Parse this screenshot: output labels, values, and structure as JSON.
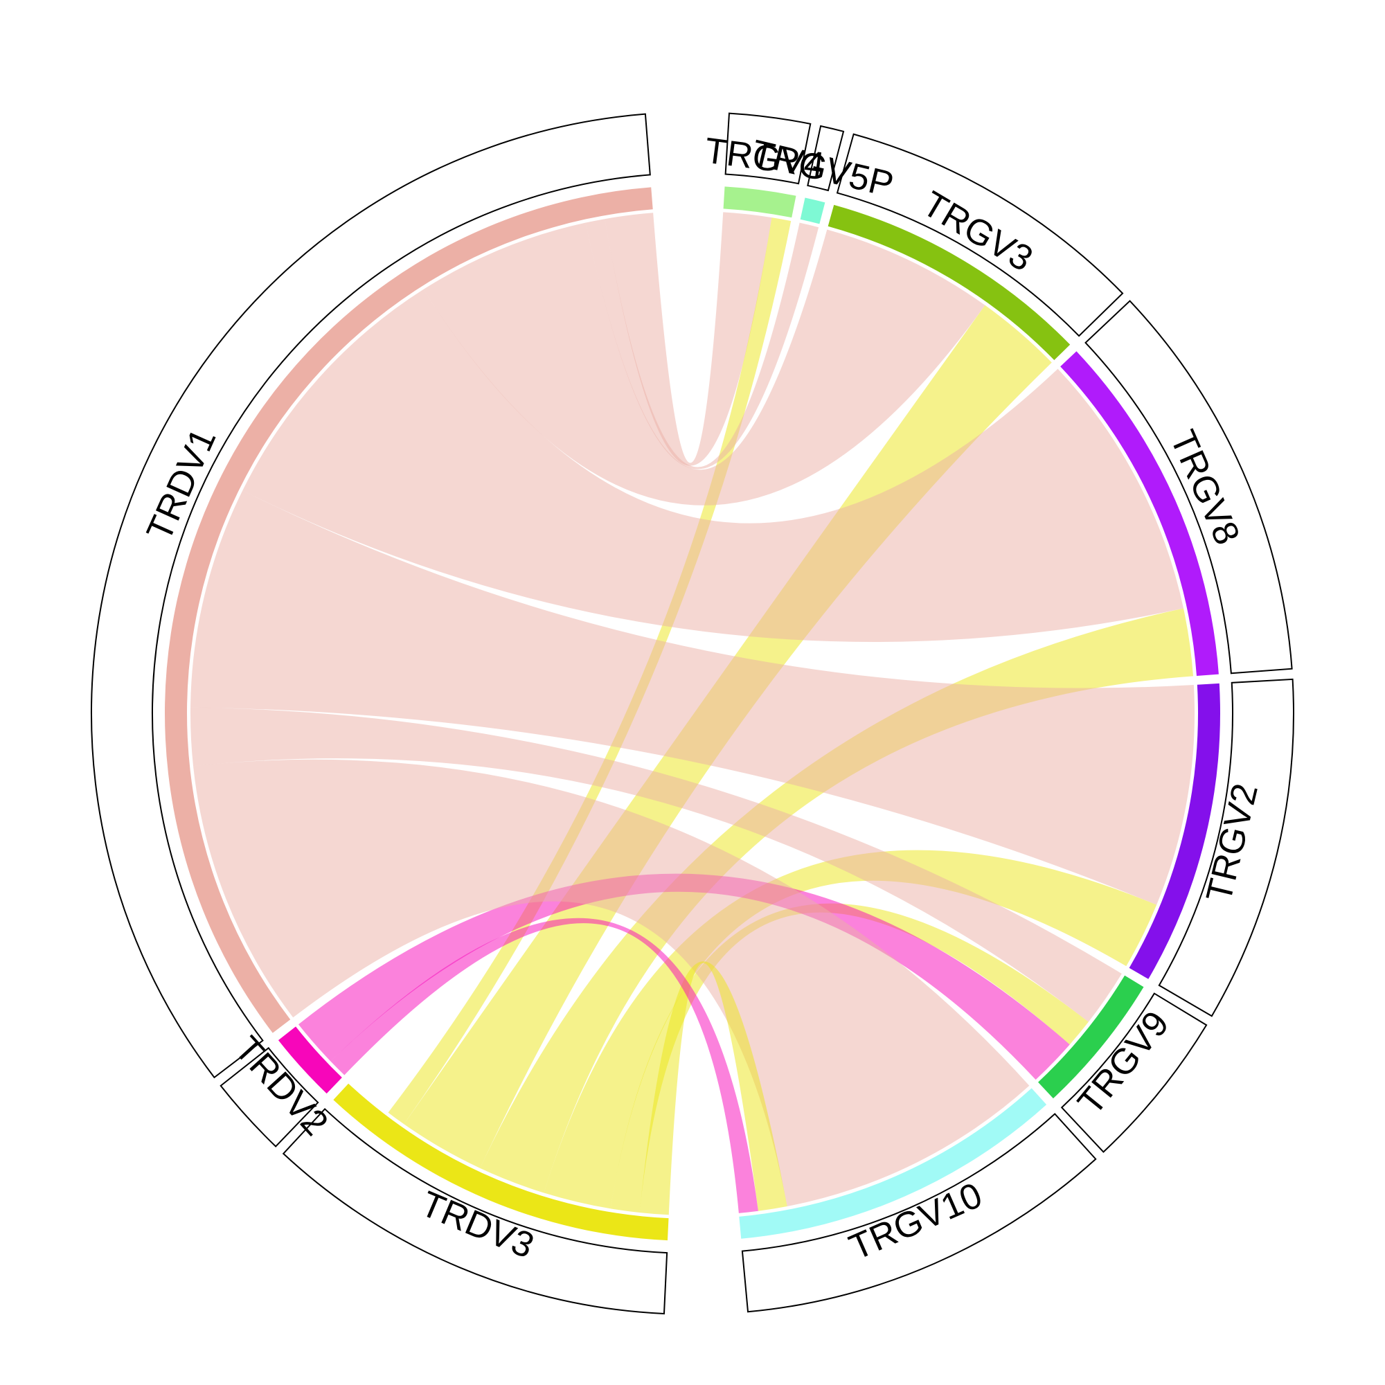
{
  "chart_data": {
    "type": "chord",
    "sectors": [
      {
        "name": "TRGV4",
        "color": "#A6F28E",
        "value": 7
      },
      {
        "name": "TRGV5P",
        "color": "#7EF9D4",
        "value": 2
      },
      {
        "name": "TRGV3",
        "color": "#86C211",
        "value": 27
      },
      {
        "name": "TRGV8",
        "color": "#B01BFB",
        "value": 35
      },
      {
        "name": "TRGV2",
        "color": "#8410EB",
        "value": 30
      },
      {
        "name": "TRGV9",
        "color": "#2BCF4E",
        "value": 14
      },
      {
        "name": "TRGV10",
        "color": "#A1FAF6",
        "value": 33
      },
      {
        "name": "TRDV3",
        "color": "#EBE617",
        "value": 36
      },
      {
        "name": "TRDV2",
        "color": "#F706BA",
        "value": 7
      },
      {
        "name": "TRDV1",
        "color": "#ECB0A6",
        "value": 110
      }
    ],
    "links": [
      {
        "from": "TRGV4",
        "to": "TRDV1",
        "value": 5
      },
      {
        "from": "TRGV4",
        "to": "TRDV3",
        "value": 2
      },
      {
        "from": "TRGV5P",
        "to": "TRDV1",
        "value": 2
      },
      {
        "from": "TRGV3",
        "to": "TRDV1",
        "value": 18
      },
      {
        "from": "TRGV3",
        "to": "TRDV3",
        "value": 9
      },
      {
        "from": "TRGV8",
        "to": "TRDV1",
        "value": 28
      },
      {
        "from": "TRGV8",
        "to": "TRDV3",
        "value": 7
      },
      {
        "from": "TRGV2",
        "to": "TRDV1",
        "value": 23
      },
      {
        "from": "TRGV2",
        "to": "TRDV3",
        "value": 7
      },
      {
        "from": "TRGV9",
        "to": "TRDV1",
        "value": 6
      },
      {
        "from": "TRGV9",
        "to": "TRDV3",
        "value": 3
      },
      {
        "from": "TRGV9",
        "to": "TRDV2",
        "value": 5
      },
      {
        "from": "TRGV10",
        "to": "TRDV1",
        "value": 28
      },
      {
        "from": "TRGV10",
        "to": "TRDV3",
        "value": 3
      },
      {
        "from": "TRGV10",
        "to": "TRDV2",
        "value": 2
      }
    ],
    "link_colors": {
      "TRDV1": "#ECB0A6",
      "TRDV3": "#EBE617",
      "TRDV2": "#F706BA"
    },
    "link_opacity": 0.5
  }
}
